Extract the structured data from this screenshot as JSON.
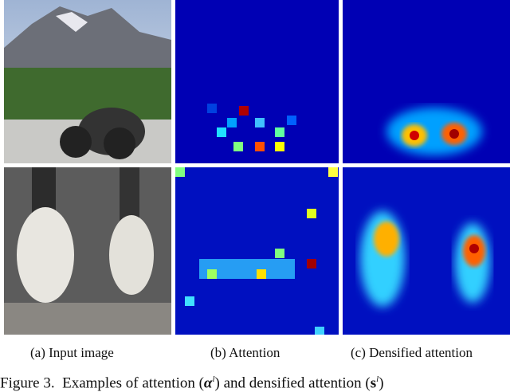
{
  "captions": {
    "a": "(a)  Input image",
    "b": "(b)  Attention",
    "c": "(c)  Densified attention"
  },
  "figure_caption": {
    "label": "Figure 3.",
    "text_1": "Examples of attention (",
    "symbol_1": "α",
    "sup_1": "l",
    "text_2": ") and densified attention (",
    "symbol_2": "s",
    "sup_2": "l",
    "text_3": ")"
  }
}
